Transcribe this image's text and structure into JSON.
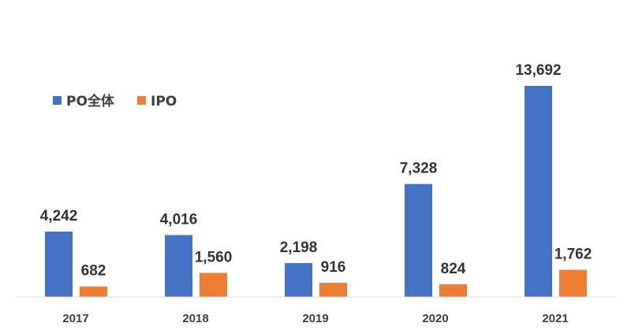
{
  "chart_data": {
    "type": "bar",
    "title": "",
    "xlabel": "",
    "ylabel": "",
    "categories": [
      "2017",
      "2018",
      "2019",
      "2020",
      "2021"
    ],
    "series": [
      {
        "name": "PO全体",
        "values": [
          4242,
          4016,
          2198,
          7328,
          13692
        ],
        "labels": [
          "4,242",
          "4,016",
          "2,198",
          "7,328",
          "13,692"
        ],
        "color": "#4472C4"
      },
      {
        "name": "IPO",
        "values": [
          682,
          1560,
          916,
          824,
          1762
        ],
        "labels": [
          "682",
          "1,560",
          "916",
          "824",
          "1,762"
        ],
        "color": "#ED7D31"
      }
    ],
    "ylim": [
      0,
      13692
    ],
    "grid": false,
    "legend_position": "top-left"
  },
  "axis_color": "#D9D9D9"
}
